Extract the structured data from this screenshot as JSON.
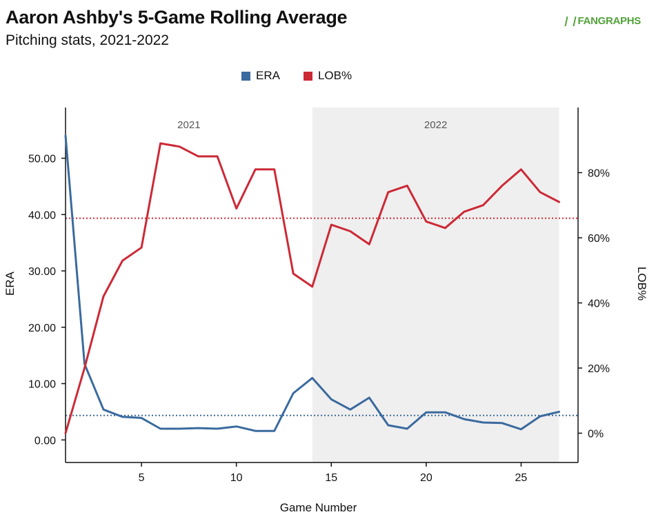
{
  "header": {
    "title": "Aaron Ashby's 5-Game Rolling Average",
    "subtitle": "Pitching stats, 2021-2022",
    "brand": "FANGRAPHS"
  },
  "chart_data": {
    "type": "line",
    "title": "Aaron Ashby's 5-Game Rolling Average",
    "subtitle": "Pitching stats, 2021-2022",
    "xlabel": "Game Number",
    "ylabel_left": "ERA",
    "ylabel_right": "LOB%",
    "xlim": [
      1,
      28
    ],
    "ylim_left": [
      -4,
      59
    ],
    "ylim_right": [
      -9,
      100
    ],
    "x_ticks": [
      5,
      10,
      15,
      20,
      25
    ],
    "y_ticks_left": [
      0,
      10,
      20,
      30,
      40,
      50
    ],
    "y_ticks_right": [
      0,
      20,
      40,
      60,
      80
    ],
    "legend_position": "top-center",
    "grid": false,
    "seasons": [
      {
        "label": "2021",
        "start": 1,
        "end": 14,
        "shaded": false
      },
      {
        "label": "2022",
        "start": 14,
        "end": 27,
        "shaded": true
      }
    ],
    "x": [
      1,
      2,
      3,
      4,
      5,
      6,
      7,
      8,
      9,
      10,
      11,
      12,
      13,
      14,
      15,
      16,
      17,
      18,
      19,
      20,
      21,
      22,
      23,
      24,
      25,
      26,
      27
    ],
    "series": [
      {
        "name": "ERA",
        "axis": "left",
        "color": "#3a6a9e",
        "values": [
          54.0,
          13.5,
          5.4,
          4.1,
          3.9,
          2.0,
          2.0,
          2.1,
          2.0,
          2.4,
          1.6,
          1.6,
          8.3,
          11.0,
          7.2,
          5.4,
          7.5,
          2.6,
          2.0,
          4.9,
          4.9,
          3.7,
          3.1,
          3.0,
          1.9,
          4.2,
          5.0
        ],
        "mean": 4.35
      },
      {
        "name": "LOB%",
        "axis": "right",
        "color": "#cc2936",
        "values": [
          0,
          20,
          42,
          53,
          57,
          89,
          88,
          85,
          85,
          69,
          81,
          81,
          49,
          45,
          64,
          62,
          58,
          74,
          76,
          65,
          63,
          68,
          70,
          76,
          81,
          74,
          71
        ],
        "mean": 66
      }
    ]
  }
}
